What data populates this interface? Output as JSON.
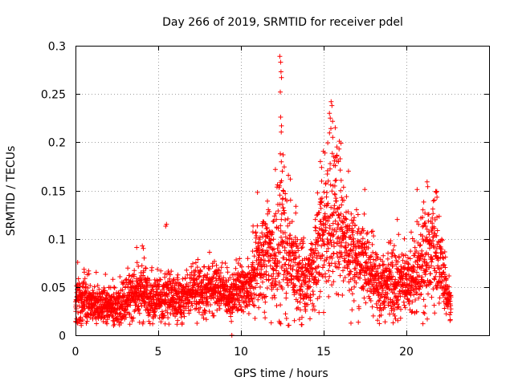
{
  "chart_data": {
    "type": "scatter",
    "title": "Day 266 of 2019, SRMTID for receiver pdel",
    "xlabel": "GPS time / hours",
    "ylabel": "SRMTID / TECUs",
    "xlim": [
      0,
      25
    ],
    "ylim": [
      0,
      0.3
    ],
    "xticks": [
      0,
      5,
      10,
      15,
      20
    ],
    "yticks": [
      0,
      0.05,
      0.1,
      0.15,
      0.2,
      0.25,
      0.3
    ],
    "xtick_labels": [
      "0",
      "5",
      "10",
      "15",
      "20"
    ],
    "ytick_labels": [
      "0",
      "0.05",
      "0.1",
      "0.15",
      "0.2",
      "0.25",
      "0.3"
    ],
    "grid": true,
    "marker": "+",
    "series": [
      {
        "name": "SRMTID",
        "color": "#ff0000",
        "profile": [
          [
            0.0,
            0.03,
            0.012
          ],
          [
            0.5,
            0.042,
            0.014
          ],
          [
            1.0,
            0.03,
            0.01
          ],
          [
            1.5,
            0.03,
            0.01
          ],
          [
            2.0,
            0.032,
            0.01
          ],
          [
            2.5,
            0.03,
            0.01
          ],
          [
            3.0,
            0.038,
            0.012
          ],
          [
            3.5,
            0.042,
            0.012
          ],
          [
            4.0,
            0.045,
            0.015
          ],
          [
            4.5,
            0.04,
            0.012
          ],
          [
            5.0,
            0.038,
            0.011
          ],
          [
            5.5,
            0.04,
            0.015
          ],
          [
            6.0,
            0.036,
            0.011
          ],
          [
            6.5,
            0.04,
            0.012
          ],
          [
            7.0,
            0.045,
            0.012
          ],
          [
            7.5,
            0.045,
            0.012
          ],
          [
            8.0,
            0.048,
            0.012
          ],
          [
            8.5,
            0.05,
            0.012
          ],
          [
            9.0,
            0.045,
            0.012
          ],
          [
            9.5,
            0.042,
            0.012
          ],
          [
            10.0,
            0.048,
            0.014
          ],
          [
            10.5,
            0.055,
            0.015
          ],
          [
            11.0,
            0.075,
            0.025
          ],
          [
            11.5,
            0.085,
            0.025
          ],
          [
            12.0,
            0.08,
            0.03
          ],
          [
            12.5,
            0.1,
            0.045
          ],
          [
            13.0,
            0.07,
            0.025
          ],
          [
            13.5,
            0.068,
            0.022
          ],
          [
            14.0,
            0.055,
            0.018
          ],
          [
            14.5,
            0.075,
            0.022
          ],
          [
            15.0,
            0.11,
            0.035
          ],
          [
            15.5,
            0.12,
            0.045
          ],
          [
            16.0,
            0.11,
            0.035
          ],
          [
            16.5,
            0.09,
            0.025
          ],
          [
            17.0,
            0.08,
            0.022
          ],
          [
            17.5,
            0.075,
            0.02
          ],
          [
            18.0,
            0.06,
            0.018
          ],
          [
            18.5,
            0.05,
            0.016
          ],
          [
            19.0,
            0.055,
            0.018
          ],
          [
            19.5,
            0.06,
            0.02
          ],
          [
            20.0,
            0.052,
            0.016
          ],
          [
            20.5,
            0.065,
            0.02
          ],
          [
            21.0,
            0.08,
            0.025
          ],
          [
            21.5,
            0.09,
            0.025
          ],
          [
            22.0,
            0.075,
            0.02
          ],
          [
            22.5,
            0.04,
            0.012
          ],
          [
            22.7,
            0.03,
            0.01
          ]
        ],
        "peaks": [
          [
            12.35,
            0.289
          ],
          [
            12.4,
            0.283
          ],
          [
            12.42,
            0.273
          ],
          [
            12.45,
            0.267
          ],
          [
            12.38,
            0.252
          ],
          [
            12.4,
            0.226
          ],
          [
            12.45,
            0.217
          ],
          [
            12.38,
            0.188
          ],
          [
            12.55,
            0.187
          ],
          [
            12.5,
            0.17
          ],
          [
            12.45,
            0.16
          ],
          [
            12.55,
            0.15
          ],
          [
            15.45,
            0.242
          ],
          [
            15.5,
            0.238
          ],
          [
            15.35,
            0.23
          ],
          [
            15.4,
            0.225
          ],
          [
            15.7,
            0.215
          ],
          [
            15.95,
            0.201
          ],
          [
            16.05,
            0.199
          ],
          [
            15.55,
            0.205
          ],
          [
            15.8,
            0.195
          ],
          [
            15.6,
            0.185
          ],
          [
            15.9,
            0.18
          ],
          [
            11.0,
            0.148
          ],
          [
            11.6,
            0.139
          ],
          [
            13.0,
            0.14
          ],
          [
            14.8,
            0.18
          ],
          [
            20.65,
            0.151
          ],
          [
            21.25,
            0.159
          ],
          [
            21.8,
            0.148
          ],
          [
            21.85,
            0.143
          ],
          [
            21.05,
            0.138
          ],
          [
            21.0,
            0.13
          ],
          [
            21.7,
            0.14
          ],
          [
            19.45,
            0.12
          ],
          [
            5.5,
            0.115
          ],
          [
            5.45,
            0.113
          ],
          [
            3.7,
            0.091
          ],
          [
            4.1,
            0.09
          ],
          [
            4.15,
            0.08
          ],
          [
            8.1,
            0.086
          ],
          [
            16.5,
            0.17
          ],
          [
            14.5,
            0.12
          ]
        ],
        "lows": [
          [
            9.45,
            0.0
          ],
          [
            21.0,
            0.012
          ],
          [
            1.9,
            0.012
          ],
          [
            2.3,
            0.01
          ],
          [
            18.0,
            0.02
          ],
          [
            19.3,
            0.02
          ]
        ],
        "points_generated": 3200
      }
    ]
  }
}
